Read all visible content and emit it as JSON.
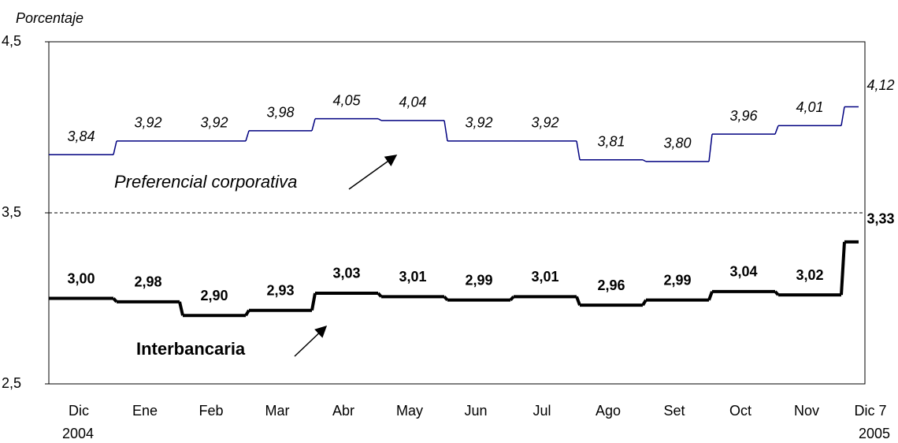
{
  "chart_data": {
    "type": "step",
    "y_axis_label": "Porcentaje",
    "categories": [
      "Dic",
      "Ene",
      "Feb",
      "Mar",
      "Abr",
      "May",
      "Jun",
      "Jul",
      "Ago",
      "Set",
      "Oct",
      "Nov",
      "Dic 7"
    ],
    "x_year_labels": [
      "2004",
      "2005"
    ],
    "ylim": [
      2.5,
      4.5
    ],
    "yticks": [
      {
        "value": 2.5,
        "label": "2,5"
      },
      {
        "value": 3.5,
        "label": "3,5"
      },
      {
        "value": 4.5,
        "label": "4,5"
      }
    ],
    "grid_at": [
      {
        "value": 3.5,
        "label": "3,5"
      }
    ],
    "series": [
      {
        "name": "Preferencial corporativa",
        "color": "#000080",
        "style": "italic",
        "values": [
          3.84,
          3.92,
          3.92,
          3.98,
          4.05,
          4.04,
          3.92,
          3.92,
          3.81,
          3.8,
          3.96,
          4.01,
          4.12
        ],
        "value_labels": [
          "3,84",
          "3,92",
          "3,92",
          "3,98",
          "4,05",
          "4,04",
          "3,92",
          "3,92",
          "3,81",
          "3,80",
          "3,96",
          "4,01",
          "4,12"
        ]
      },
      {
        "name": "Interbancaria",
        "color": "#000000",
        "style": "bold",
        "values": [
          3.0,
          2.98,
          2.9,
          2.93,
          3.03,
          3.01,
          2.99,
          3.01,
          2.96,
          2.99,
          3.04,
          3.02,
          3.33
        ],
        "value_labels": [
          "3,00",
          "2,98",
          "2,90",
          "2,93",
          "3,03",
          "3,01",
          "2,99",
          "3,01",
          "2,96",
          "2,99",
          "3,04",
          "3,02",
          "3,33"
        ]
      }
    ]
  }
}
